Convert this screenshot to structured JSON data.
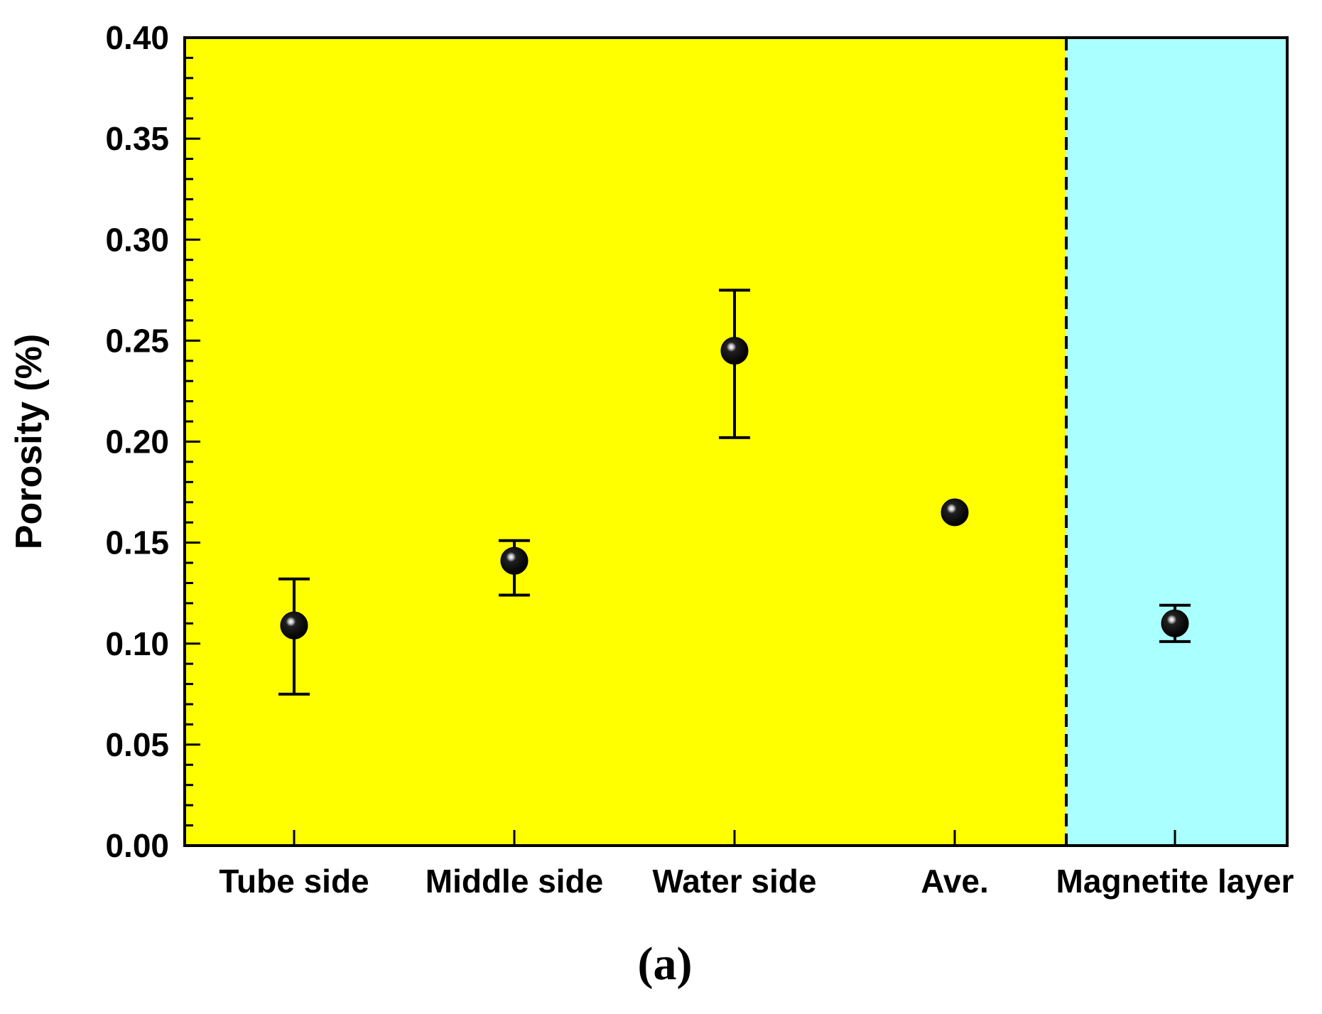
{
  "chart_data": {
    "type": "scatter",
    "ylabel": "Porosity (%)",
    "xlabel": "",
    "ylim": [
      0,
      0.4
    ],
    "yticks": [
      "0.00",
      "0.05",
      "0.10",
      "0.15",
      "0.20",
      "0.25",
      "0.30",
      "0.35",
      "0.40"
    ],
    "categories": [
      "Tube side",
      "Middle side",
      "Water side",
      "Ave.",
      "Magnetite layer"
    ],
    "values": [
      0.109,
      0.141,
      0.245,
      0.165,
      0.11
    ],
    "error_low": [
      0.075,
      0.124,
      0.202,
      0.165,
      0.101
    ],
    "error_high": [
      0.132,
      0.151,
      0.275,
      0.165,
      0.119
    ],
    "regions": [
      {
        "color": "#ffff00",
        "from_category": 0,
        "to_category": 3
      },
      {
        "color": "#aaffff",
        "from_category": 4,
        "to_category": 4
      }
    ],
    "divider": "dashed",
    "grid": false,
    "panel_label": "(a)"
  }
}
